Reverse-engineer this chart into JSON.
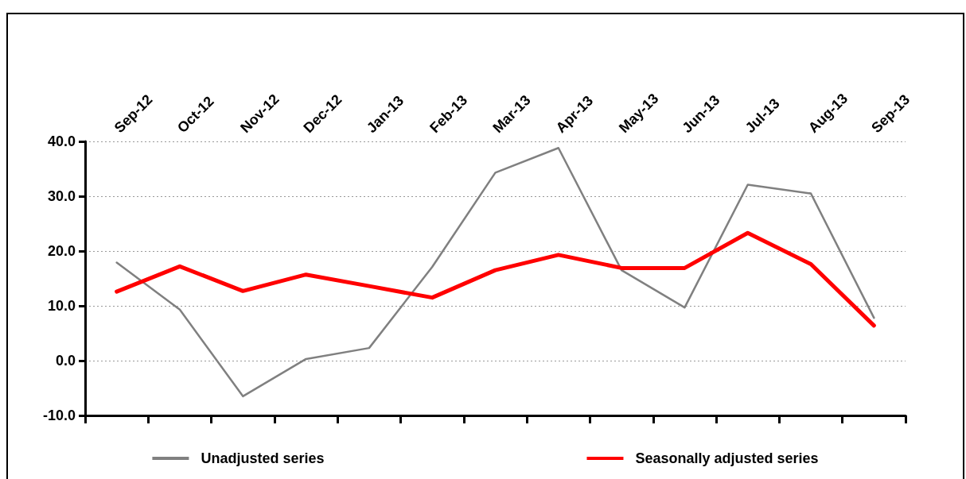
{
  "chart_data": {
    "type": "line",
    "categories": [
      "Sep-12",
      "Oct-12",
      "Nov-12",
      "Dec-12",
      "Jan-13",
      "Feb-13",
      "Mar-13",
      "Apr-13",
      "May-13",
      "Jun-13",
      "Jul-13",
      "Aug-13",
      "Sep-13"
    ],
    "series": [
      {
        "name": "Unadjusted series",
        "color": "#808080",
        "values": [
          17.9,
          9.3,
          -6.5,
          0.3,
          2.3,
          17.1,
          34.3,
          38.8,
          16.5,
          9.7,
          32.1,
          30.5,
          7.8
        ]
      },
      {
        "name": "Seasonally adjusted series",
        "color": "#ff0000",
        "values": [
          12.6,
          17.2,
          12.7,
          15.7,
          13.6,
          11.5,
          16.5,
          19.3,
          16.9,
          16.9,
          23.3,
          17.6,
          6.4
        ]
      }
    ],
    "ylim": [
      -10,
      40
    ],
    "yticks": [
      {
        "value": -10,
        "label": "-10.0"
      },
      {
        "value": 0,
        "label": "0.0"
      },
      {
        "value": 10,
        "label": "10.0"
      },
      {
        "value": 20,
        "label": "20.0"
      },
      {
        "value": 30,
        "label": "30.0"
      },
      {
        "value": 40,
        "label": "40.0"
      }
    ],
    "grid": "y",
    "legend": "bottom",
    "marker": "none",
    "line_style": "solid"
  }
}
